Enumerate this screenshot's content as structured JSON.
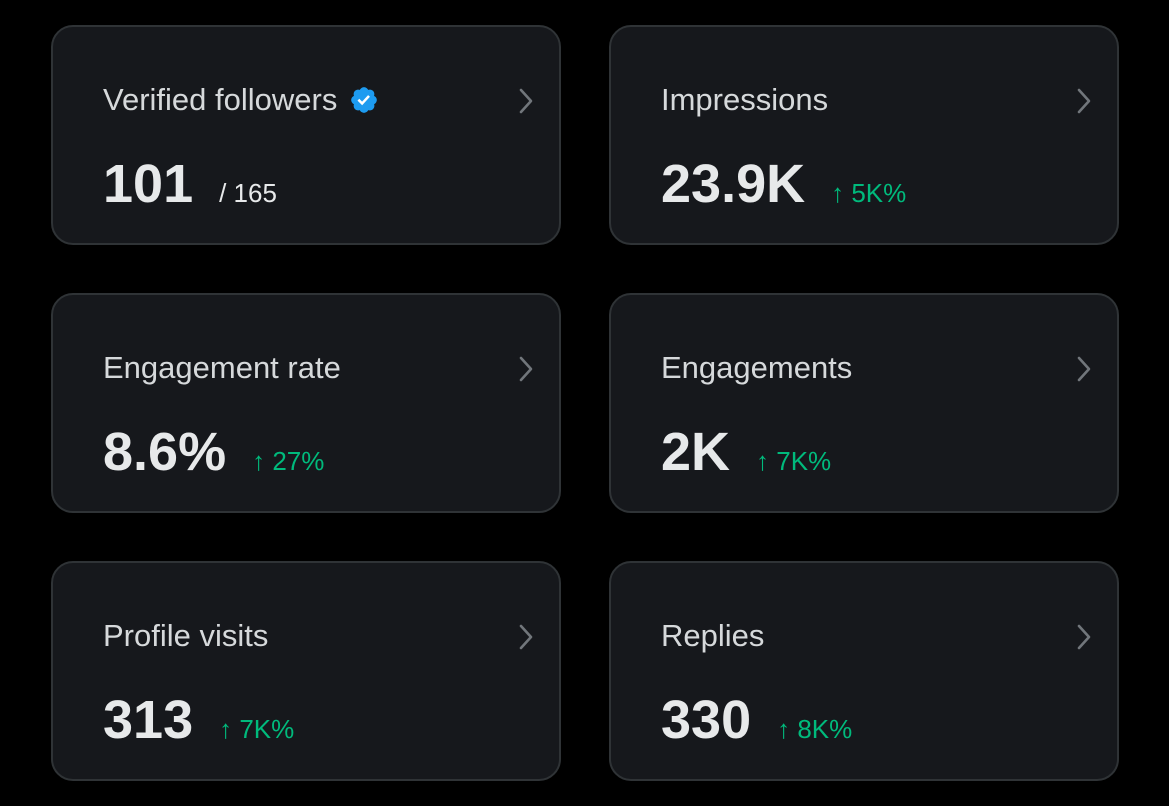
{
  "colors": {
    "background": "#000000",
    "card": "#16181c",
    "card_border": "#2f3336",
    "title": "#d6d9db",
    "value": "#e7e9ea",
    "positive_delta": "#00ba7c",
    "verified_badge": "#1d9bf0"
  },
  "cards": [
    {
      "title": "Verified followers",
      "icon": "verified-badge-icon",
      "value": "101",
      "sub": "/ 165"
    },
    {
      "title": "Impressions",
      "value": "23.9K",
      "delta": "↑ 5K%"
    },
    {
      "title": "Engagement rate",
      "value": "8.6%",
      "delta": "↑ 27%"
    },
    {
      "title": "Engagements",
      "value": "2K",
      "delta": "↑ 7K%"
    },
    {
      "title": "Profile visits",
      "value": "313",
      "delta": "↑ 7K%"
    },
    {
      "title": "Replies",
      "value": "330",
      "delta": "↑ 8K%"
    }
  ]
}
